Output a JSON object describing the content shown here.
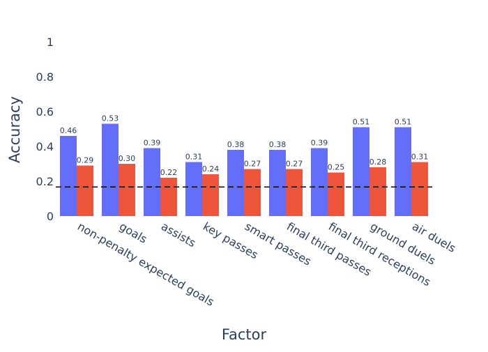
{
  "chart_data": {
    "type": "bar",
    "title": "",
    "xlabel": "Factor",
    "ylabel": "Accuracy",
    "ylim": [
      0,
      1
    ],
    "yticks": [
      0,
      0.2,
      0.4,
      0.6,
      0.8,
      1
    ],
    "ytick_labels": [
      "0",
      "0.2",
      "0.4",
      "0.6",
      "0.8",
      "1"
    ],
    "grid": false,
    "categories": [
      "non-penalty expected goals",
      "goals",
      "assists",
      "key passes",
      "smart passes",
      "final third passes",
      "final third receptions",
      "ground duels",
      "air duels"
    ],
    "series": [
      {
        "color": "#636efa",
        "values": [
          0.46,
          0.53,
          0.39,
          0.31,
          0.38,
          0.38,
          0.39,
          0.51,
          0.51
        ],
        "labels": [
          "0.46",
          "0.53",
          "0.39",
          "0.31",
          "0.38",
          "0.38",
          "0.39",
          "0.51",
          "0.51"
        ]
      },
      {
        "color": "#ef553b",
        "values": [
          0.29,
          0.3,
          0.22,
          0.24,
          0.27,
          0.27,
          0.25,
          0.28,
          0.31
        ],
        "labels": [
          "0.29",
          "0.30",
          "0.22",
          "0.24",
          "0.27",
          "0.27",
          "0.25",
          "0.28",
          "0.31"
        ]
      }
    ],
    "reference_line": {
      "y": 0.167,
      "style": "dashed",
      "color": "#000000"
    }
  }
}
